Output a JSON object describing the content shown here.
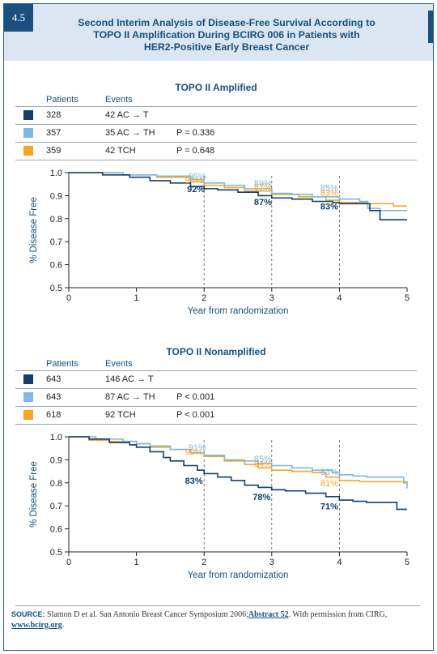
{
  "figure": {
    "number": "4.5",
    "title": "Second Interim Analysis of Disease-Free Survival According to TOPO II Amplification During BCIRG 006 in Patients with HER2-Positive Early Breast Cancer",
    "title_lines": [
      "Second Interim Analysis of Disease-Free Survival According to",
      "TOPO II Amplification During BCIRG 006 in Patients with",
      "HER2-Positive Early Breast Cancer"
    ]
  },
  "source": {
    "label": "SOURCE:",
    "text1": "Slamon D et al. San Antonio Breast Cancer Symposium 2006;",
    "link1": "Abstract 52",
    "text2": ". With permission from CIRG, ",
    "link2": "www.bcirg.org",
    "text3": "."
  },
  "colors": {
    "ac_t": "#123f69",
    "ac_th": "#7db8e6",
    "tch": "#f5a623",
    "axis": "#222222",
    "text_blue": "#15507f"
  },
  "chart_data": [
    {
      "type": "line",
      "title": "TOPO II Amplified",
      "table_headers": {
        "patients": "Patients",
        "events": "Events"
      },
      "rows": [
        {
          "key": "ac_t",
          "patients": "328",
          "events": "42 AC → T",
          "p": ""
        },
        {
          "key": "ac_th",
          "patients": "357",
          "events": "35 AC → TH",
          "p": "P = 0.336"
        },
        {
          "key": "tch",
          "patients": "359",
          "events": "42 TCH",
          "p": "P = 0.648"
        }
      ],
      "xlabel": "Year from randomization",
      "ylabel": "% Disease Free",
      "xlim": [
        0,
        5
      ],
      "ylim": [
        0.5,
        1.0
      ],
      "xticks": [
        "0",
        "1",
        "2",
        "3",
        "4",
        "5"
      ],
      "yticks": [
        "0.5",
        "0.6",
        "0.7",
        "0.8",
        "0.9",
        "1.0"
      ],
      "dashed_x": [
        2,
        3,
        4
      ],
      "series": [
        {
          "key": "tch",
          "x": [
            0,
            0.8,
            1.3,
            1.8,
            2.0,
            2.3,
            2.6,
            3.0,
            3.4,
            3.8,
            4.0,
            4.4,
            4.8,
            5.0
          ],
          "y": [
            1.0,
            0.99,
            0.98,
            0.96,
            0.945,
            0.935,
            0.92,
            0.905,
            0.895,
            0.88,
            0.87,
            0.865,
            0.855,
            0.855
          ]
        },
        {
          "key": "ac_th",
          "x": [
            0,
            0.8,
            1.3,
            1.8,
            2.0,
            2.3,
            2.6,
            3.0,
            3.3,
            3.6,
            4.0,
            4.3,
            4.42,
            4.6,
            4.9,
            5.0
          ],
          "y": [
            1.0,
            0.99,
            0.985,
            0.97,
            0.955,
            0.945,
            0.93,
            0.91,
            0.905,
            0.895,
            0.885,
            0.875,
            0.845,
            0.835,
            0.835,
            0.835
          ]
        },
        {
          "key": "ac_t",
          "x": [
            0,
            0.5,
            0.9,
            1.2,
            1.5,
            1.8,
            2.0,
            2.2,
            2.5,
            2.8,
            3.0,
            3.3,
            3.6,
            3.9,
            4.0,
            4.3,
            4.45,
            4.55,
            4.6,
            5.0
          ],
          "y": [
            1.0,
            0.99,
            0.98,
            0.965,
            0.955,
            0.94,
            0.93,
            0.925,
            0.915,
            0.9,
            0.89,
            0.885,
            0.875,
            0.87,
            0.865,
            0.865,
            0.835,
            0.835,
            0.795,
            0.795
          ]
        }
      ],
      "annotations": [
        {
          "x": 1.9,
          "y": 0.97,
          "text": "95%",
          "key": "ac_th"
        },
        {
          "x": 1.85,
          "y": 0.955,
          "text": "94%",
          "key": "tch"
        },
        {
          "x": 1.88,
          "y": 0.915,
          "text": "92%",
          "key": "ac_t"
        },
        {
          "x": 2.87,
          "y": 0.94,
          "text": "89%",
          "key": "ac_th"
        },
        {
          "x": 2.87,
          "y": 0.925,
          "text": "87%",
          "key": "tch"
        },
        {
          "x": 2.87,
          "y": 0.86,
          "text": "87%",
          "key": "ac_t"
        },
        {
          "x": 3.85,
          "y": 0.92,
          "text": "85%",
          "key": "ac_th"
        },
        {
          "x": 3.85,
          "y": 0.9,
          "text": "83%",
          "key": "tch"
        },
        {
          "x": 3.85,
          "y": 0.84,
          "text": "83%",
          "key": "ac_t"
        }
      ]
    },
    {
      "type": "line",
      "title": "TOPO II Nonamplified",
      "table_headers": {
        "patients": "Patients",
        "events": "Events"
      },
      "rows": [
        {
          "key": "ac_t",
          "patients": "643",
          "events": "146 AC → T",
          "p": ""
        },
        {
          "key": "ac_th",
          "patients": "643",
          "events": "87 AC → TH",
          "p": "P < 0.001"
        },
        {
          "key": "tch",
          "patients": "618",
          "events": "92 TCH",
          "p": "P < 0.001"
        }
      ],
      "xlabel": "Year from randomization",
      "ylabel": "% Disease Free",
      "xlim": [
        0,
        5
      ],
      "ylim": [
        0.5,
        1.0
      ],
      "xticks": [
        "0",
        "1",
        "2",
        "3",
        "4",
        "5"
      ],
      "yticks": [
        "0.5",
        "0.6",
        "0.7",
        "0.8",
        "0.9",
        "1.0"
      ],
      "dashed_x": [
        2,
        3,
        4
      ],
      "series": [
        {
          "key": "tch",
          "x": [
            0,
            0.3,
            0.6,
            1.0,
            1.2,
            1.5,
            1.8,
            2.0,
            2.3,
            2.6,
            2.8,
            3.0,
            3.3,
            3.6,
            3.8,
            4.0,
            4.3,
            4.6,
            4.9,
            5.0
          ],
          "y": [
            1.0,
            0.985,
            0.98,
            0.97,
            0.955,
            0.945,
            0.93,
            0.915,
            0.895,
            0.88,
            0.865,
            0.855,
            0.85,
            0.845,
            0.825,
            0.81,
            0.805,
            0.805,
            0.805,
            0.8
          ]
        },
        {
          "key": "ac_th",
          "x": [
            0,
            0.4,
            0.8,
            1.0,
            1.2,
            1.5,
            1.8,
            2.0,
            2.3,
            2.6,
            2.8,
            3.0,
            3.3,
            3.6,
            3.9,
            4.0,
            4.2,
            4.4,
            4.7,
            4.95,
            5.0
          ],
          "y": [
            1.0,
            0.99,
            0.98,
            0.97,
            0.96,
            0.945,
            0.93,
            0.92,
            0.9,
            0.895,
            0.885,
            0.875,
            0.865,
            0.855,
            0.845,
            0.835,
            0.83,
            0.825,
            0.825,
            0.8,
            0.775
          ]
        },
        {
          "key": "ac_t",
          "x": [
            0,
            0.3,
            0.6,
            0.9,
            1.0,
            1.2,
            1.4,
            1.5,
            1.7,
            1.9,
            2.0,
            2.2,
            2.4,
            2.6,
            2.8,
            3.0,
            3.2,
            3.5,
            3.8,
            4.0,
            4.2,
            4.4,
            4.6,
            4.85,
            5.0
          ],
          "y": [
            1.0,
            0.99,
            0.975,
            0.965,
            0.955,
            0.935,
            0.91,
            0.895,
            0.875,
            0.855,
            0.84,
            0.825,
            0.81,
            0.79,
            0.78,
            0.77,
            0.765,
            0.755,
            0.74,
            0.725,
            0.72,
            0.715,
            0.715,
            0.685,
            0.685
          ]
        }
      ],
      "annotations": [
        {
          "x": 1.9,
          "y": 0.94,
          "text": "91%",
          "key": "ac_th"
        },
        {
          "x": 1.85,
          "y": 0.92,
          "text": "90%",
          "key": "tch"
        },
        {
          "x": 1.85,
          "y": 0.795,
          "text": "83%",
          "key": "ac_t"
        },
        {
          "x": 2.87,
          "y": 0.89,
          "text": "85%",
          "key": "ac_th"
        },
        {
          "x": 2.87,
          "y": 0.87,
          "text": "84%",
          "key": "tch"
        },
        {
          "x": 2.85,
          "y": 0.725,
          "text": "78%",
          "key": "ac_t"
        },
        {
          "x": 3.85,
          "y": 0.835,
          "text": "83%",
          "key": "ac_th"
        },
        {
          "x": 3.85,
          "y": 0.785,
          "text": "81%",
          "key": "tch"
        },
        {
          "x": 3.85,
          "y": 0.685,
          "text": "71%",
          "key": "ac_t"
        }
      ]
    }
  ]
}
